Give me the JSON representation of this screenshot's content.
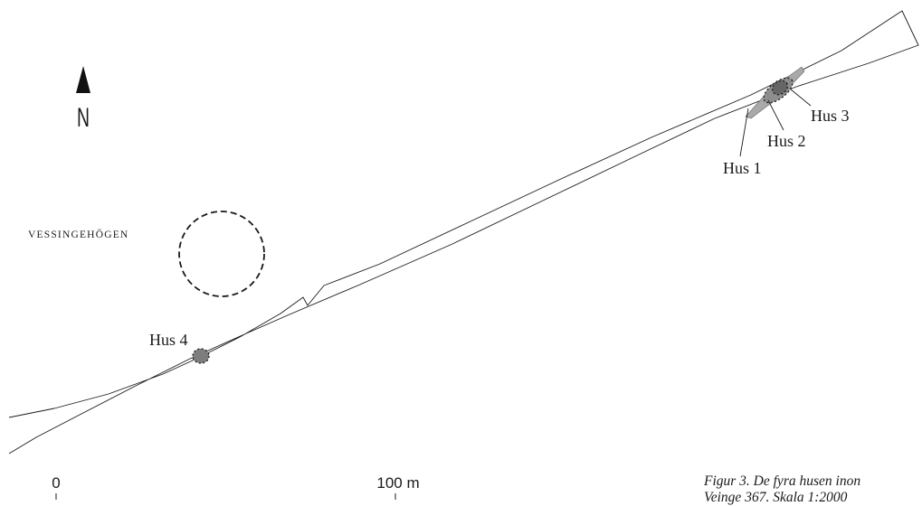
{
  "north_arrow": {
    "label": "N"
  },
  "mound": {
    "label": "VESSINGEHÖGEN"
  },
  "houses": [
    {
      "label": "Hus 1"
    },
    {
      "label": "Hus 2"
    },
    {
      "label": "Hus 3"
    },
    {
      "label": "Hus 4"
    }
  ],
  "scale_bar": {
    "start_label": "0",
    "end_label": "100 m"
  },
  "caption": {
    "line1": "Figur 3. De fyra husen inon",
    "line2": "Veinge 367. Skala 1:2000"
  },
  "colors": {
    "line": "#1a1a1a",
    "house_fill": "#9a9a9a",
    "house_dark": "#555555"
  }
}
